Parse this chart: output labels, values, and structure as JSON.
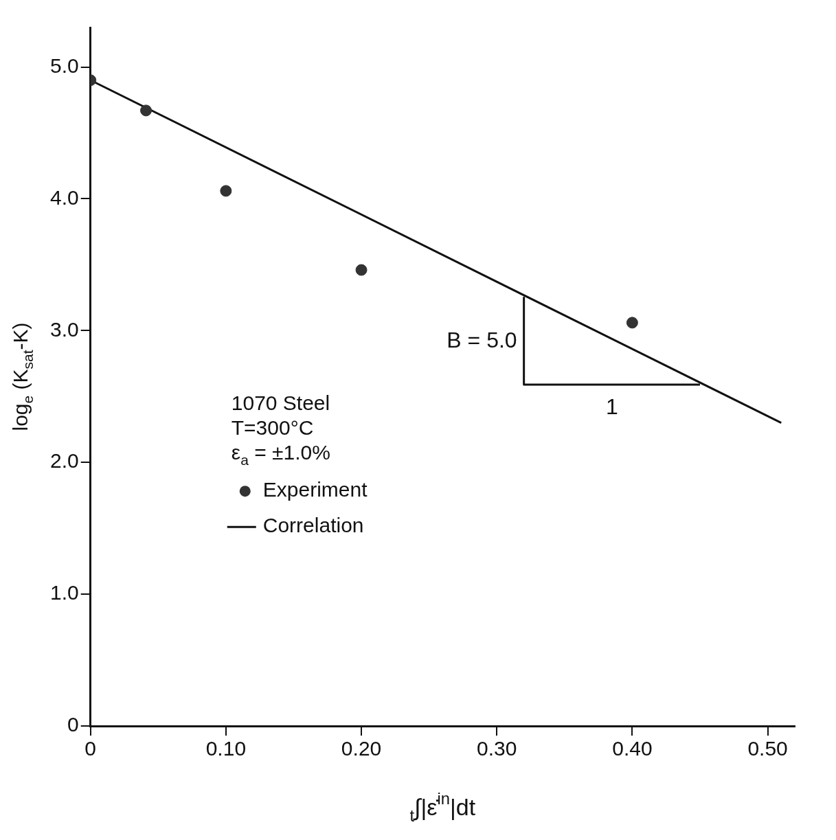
{
  "chart_data": {
    "type": "scatter",
    "xlabel": "$_{t}$∫|ε̇$^{in}$|dt",
    "ylabel": "log$_{e}$ (K$_{sat}$-K)",
    "series": [
      {
        "name": "Experiment",
        "color": "#333333",
        "marker": "circle",
        "x": [
          0,
          0.041,
          0.1,
          0.2,
          0.4
        ],
        "values": [
          4.9,
          4.67,
          4.06,
          3.46,
          3.06
        ]
      },
      {
        "name": "Correlation",
        "type": "line",
        "color": "#111111",
        "x": [
          0,
          0.51
        ],
        "values": [
          4.9,
          2.3
        ]
      },
      {
        "type": "line",
        "color": "#111111",
        "x": [
          0.32,
          0.32,
          0.45
        ],
        "values": [
          3.25,
          2.59,
          2.59
        ]
      }
    ],
    "xlim": [
      0,
      0.52
    ],
    "ylim": [
      0,
      5.3
    ],
    "xticks": [
      0,
      {
        "value": 0.1,
        "label": "0.10"
      },
      {
        "value": 0.2,
        "label": "0.20"
      },
      {
        "value": 0.3,
        "label": "0.30"
      },
      {
        "value": 0.4,
        "label": "0.40"
      },
      {
        "value": 0.5,
        "label": "0.50"
      }
    ],
    "yticks": [
      0,
      {
        "value": 1,
        "label": "1.0"
      },
      {
        "value": 2,
        "label": "2.0"
      },
      {
        "value": 3,
        "label": "3.0"
      },
      {
        "value": 4,
        "label": "4.0"
      },
      {
        "value": 5,
        "label": "5.0"
      }
    ],
    "annotations": [
      "1070 Steel",
      "T=300°C",
      "ε$_{a}$ = ±1.0%",
      "B = 5.0",
      "1"
    ],
    "grid": false,
    "legend": "left",
    "line_style": "solid"
  }
}
